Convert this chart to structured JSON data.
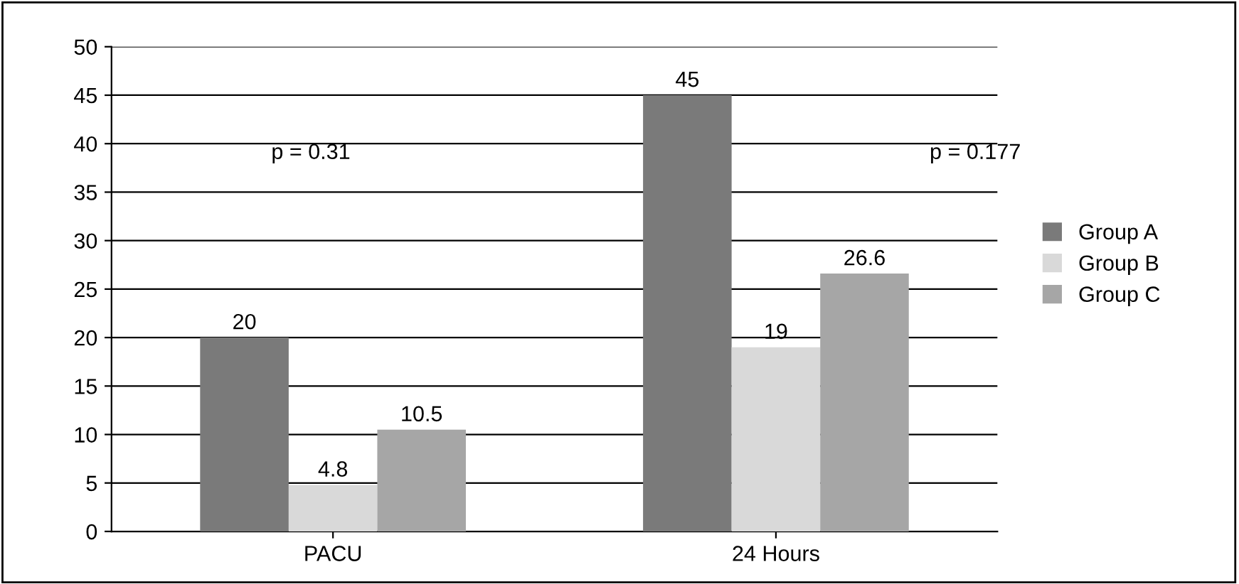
{
  "chart_data": {
    "type": "bar",
    "categories": [
      "PACU",
      "24 Hours"
    ],
    "series": [
      {
        "name": "Group A",
        "color": "#7a7a7a",
        "values": [
          20,
          45
        ]
      },
      {
        "name": "Group B",
        "color": "#d9d9d9",
        "values": [
          4.8,
          19
        ]
      },
      {
        "name": "Group C",
        "color": "#a6a6a6",
        "values": [
          10.5,
          26.6
        ]
      }
    ],
    "ylim": [
      0,
      50
    ],
    "yticks": [
      0,
      5,
      10,
      15,
      20,
      25,
      30,
      35,
      40,
      45,
      50
    ],
    "grid": "y",
    "legend": "right",
    "data_labels": true,
    "annotations": [
      "p = 0.31",
      "p = 0.177"
    ]
  }
}
